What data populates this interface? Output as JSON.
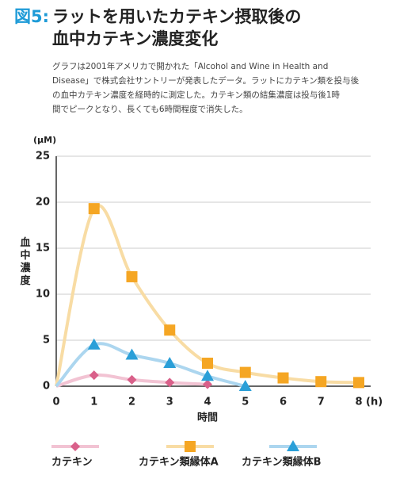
{
  "header": {
    "figure": "図5:",
    "title_lines": [
      "ラットを用いたカテキン摂取後の",
      "血中カテキン濃度変化"
    ]
  },
  "description_lines": [
    "グラフは2001年アメリカで開かれた「Alcohol and Wine in Health and",
    "Disease」で株式会社サントリーが発表したデータ。ラットにカテキン類を投与後",
    "の血中カテキン濃度を経時的に測定した。カテキン類の結集濃度は投与後1時",
    "間でピークとなり、長くても6時間程度で消失した。"
  ],
  "chart_data": {
    "type": "line",
    "y_unit": "(μM)",
    "y_label": "血中濃度",
    "x_label": "時間",
    "x_unit": "(h)",
    "xlim": [
      0,
      8
    ],
    "xticks": [
      0,
      1,
      2,
      3,
      4,
      5,
      6,
      7,
      8
    ],
    "ylim": [
      0,
      25
    ],
    "yticks": [
      0,
      5,
      10,
      15,
      20,
      25
    ],
    "grid": true,
    "series": [
      {
        "name": "カテキン",
        "color": "#d9608a",
        "line_color": "#f2c3d3",
        "marker": "diamond",
        "x": [
          0,
          1,
          2,
          3,
          4
        ],
        "values": [
          0,
          1.2,
          0.7,
          0.4,
          0.2
        ]
      },
      {
        "name": "カテキン類縁体A",
        "color": "#f5a623",
        "line_color": "#f8dca4",
        "marker": "square",
        "x": [
          0,
          1,
          2,
          3,
          4,
          5,
          6,
          7,
          8
        ],
        "values": [
          0,
          19.3,
          11.9,
          6.1,
          2.5,
          1.5,
          0.9,
          0.5,
          0.4
        ]
      },
      {
        "name": "カテキン類縁体B",
        "color": "#2a9fd8",
        "line_color": "#acd6ef",
        "marker": "triangle",
        "x": [
          0,
          1,
          2,
          3,
          4,
          5
        ],
        "values": [
          0,
          4.5,
          3.4,
          2.5,
          1.1,
          0
        ]
      }
    ]
  }
}
